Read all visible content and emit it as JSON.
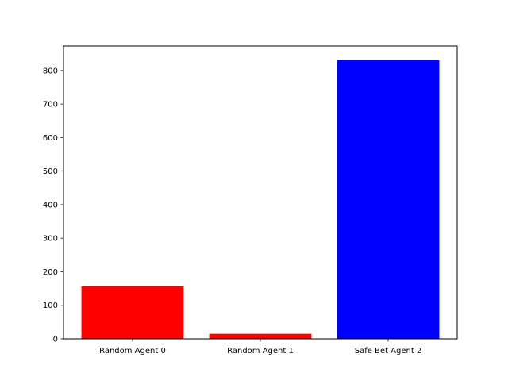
{
  "chart_data": {
    "type": "bar",
    "title": "",
    "xlabel": "",
    "ylabel": "",
    "categories": [
      "Random Agent 0",
      "Random Agent 1",
      "Safe Bet Agent 2"
    ],
    "values": [
      157,
      15,
      831
    ],
    "bar_colors": [
      "#ff0000",
      "#ff0000",
      "#0000ff"
    ],
    "ylim": [
      0,
      873
    ],
    "yticks": [
      0,
      100,
      200,
      300,
      400,
      500,
      600,
      700,
      800
    ],
    "grid": false,
    "legend": "none"
  }
}
